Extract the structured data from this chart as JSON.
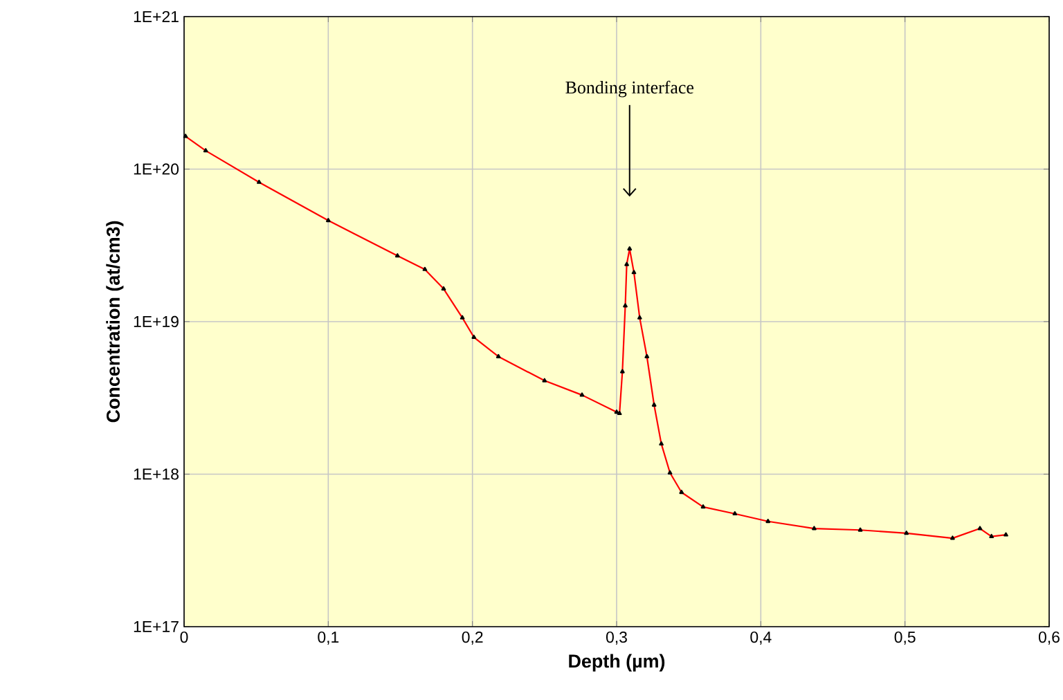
{
  "chart_data": {
    "type": "line",
    "xlabel": "Depth (µm)",
    "ylabel": "Concentration (at/cm3)",
    "annotations": [
      "Bonding interface"
    ],
    "log": "y",
    "grid": true,
    "marker": "triangle",
    "line_style": "solid",
    "xlim": [
      0,
      0.6
    ],
    "ylim": [
      1e+17,
      1e+21
    ],
    "xticks": [
      0,
      {
        "value": 0.1,
        "label": "0,1"
      },
      {
        "value": 0.2,
        "label": "0,2"
      },
      {
        "value": 0.3,
        "label": "0,3"
      },
      {
        "value": 0.4,
        "label": "0,4"
      },
      {
        "value": 0.5,
        "label": "0,5"
      },
      {
        "value": 0.6,
        "label": "0,6"
      }
    ],
    "yticks": [
      {
        "value": 1e+17,
        "label": "1E+17"
      },
      {
        "value": 1e+18,
        "label": "1E+18"
      },
      {
        "value": 1e+19,
        "label": "1E+19"
      },
      {
        "value": 1e+20,
        "label": "1E+20"
      },
      {
        "value": 1e+21,
        "label": "1E+21"
      }
    ],
    "series": [
      {
        "color": "#ff0000",
        "x": [
          0.001,
          0.015,
          0.052,
          0.1,
          0.148,
          0.167,
          0.18,
          0.193,
          0.201,
          0.218,
          0.25,
          0.276,
          0.3,
          0.302,
          0.304,
          0.306,
          0.307,
          0.309,
          0.312,
          0.316,
          0.321,
          0.326,
          0.331,
          0.337,
          0.345,
          0.36,
          0.382,
          0.405,
          0.437,
          0.469,
          0.501,
          0.533,
          0.552,
          0.56,
          0.57
        ],
        "values": [
          1.64e+20,
          1.32e+20,
          8.2e+19,
          4.6e+19,
          2.7e+19,
          2.2e+19,
          1.64e+19,
          1.06e+19,
          7.9e+18,
          5.9e+18,
          4.1e+18,
          3.3e+18,
          2.55e+18,
          2.5e+18,
          4.7e+18,
          1.27e+19,
          2.37e+19,
          3e+19,
          2.1e+19,
          1.06e+19,
          5.9e+18,
          2.84e+18,
          1.58e+18,
          1.02e+18,
          7.6e+17,
          6.1e+17,
          5.5e+17,
          4.9e+17,
          4.4e+17,
          4.3e+17,
          4.1e+17,
          3.8e+17,
          4.4e+17,
          3.9e+17,
          4e+17
        ]
      }
    ]
  }
}
